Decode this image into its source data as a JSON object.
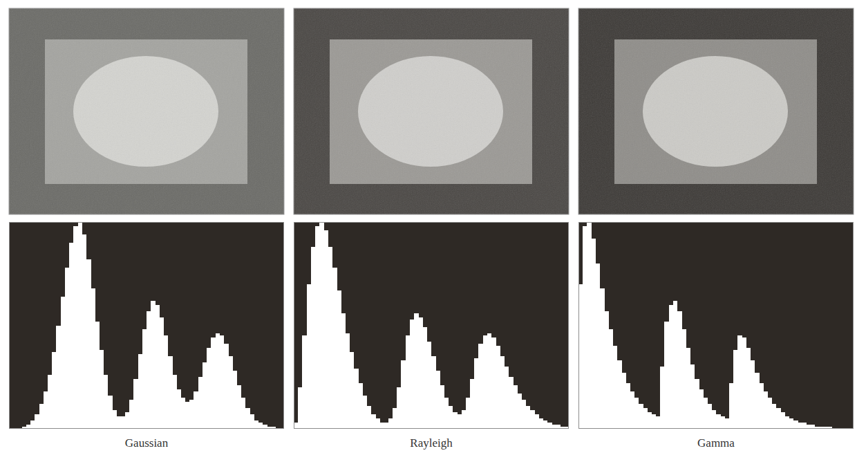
{
  "chart_data": [
    {
      "type": "histogram",
      "title": "Gaussian",
      "color": "#ffffff",
      "tick_labels": false,
      "xlim": [
        0,
        256
      ],
      "ylim": [
        0,
        100
      ],
      "bins": [
        0,
        4,
        8,
        12,
        16,
        20,
        24,
        28,
        32,
        36,
        40,
        44,
        48,
        52,
        56,
        60,
        64,
        68,
        72,
        76,
        80,
        84,
        88,
        92,
        96,
        100,
        104,
        108,
        112,
        116,
        120,
        124,
        128,
        132,
        136,
        140,
        144,
        148,
        152,
        156,
        160,
        164,
        168,
        172,
        176,
        180,
        184,
        188,
        192,
        196,
        200,
        204,
        208,
        212,
        216,
        220,
        224,
        228,
        232,
        236,
        240,
        244,
        248,
        252,
        256
      ],
      "values": [
        0,
        0,
        0,
        1,
        2,
        4,
        7,
        12,
        18,
        26,
        37,
        50,
        64,
        78,
        90,
        98,
        100,
        94,
        82,
        68,
        52,
        38,
        26,
        16,
        9,
        6,
        6,
        8,
        14,
        24,
        36,
        48,
        57,
        62,
        60,
        54,
        45,
        35,
        26,
        19,
        15,
        13,
        14,
        18,
        25,
        32,
        39,
        44,
        46,
        45,
        41,
        35,
        28,
        21,
        15,
        10,
        7,
        4,
        3,
        2,
        1,
        1,
        0,
        0
      ]
    },
    {
      "type": "histogram",
      "title": "Rayleigh",
      "color": "#ffffff",
      "tick_labels": false,
      "xlim": [
        0,
        256
      ],
      "ylim": [
        0,
        100
      ],
      "bins": [
        0,
        4,
        8,
        12,
        16,
        20,
        24,
        28,
        32,
        36,
        40,
        44,
        48,
        52,
        56,
        60,
        64,
        68,
        72,
        76,
        80,
        84,
        88,
        92,
        96,
        100,
        104,
        108,
        112,
        116,
        120,
        124,
        128,
        132,
        136,
        140,
        144,
        148,
        152,
        156,
        160,
        164,
        168,
        172,
        176,
        180,
        184,
        188,
        192,
        196,
        200,
        204,
        208,
        212,
        216,
        220,
        224,
        228,
        232,
        236,
        240,
        244,
        248,
        252,
        256
      ],
      "values": [
        3,
        20,
        45,
        70,
        88,
        98,
        100,
        96,
        88,
        78,
        67,
        56,
        46,
        37,
        29,
        22,
        16,
        11,
        7,
        5,
        3,
        3,
        5,
        10,
        20,
        33,
        45,
        53,
        56,
        54,
        49,
        42,
        35,
        28,
        21,
        15,
        11,
        8,
        7,
        9,
        15,
        24,
        34,
        41,
        45,
        46,
        44,
        40,
        35,
        30,
        25,
        21,
        17,
        14,
        11,
        9,
        7,
        5,
        4,
        3,
        2,
        2,
        1,
        1
      ]
    },
    {
      "type": "histogram",
      "title": "Gamma",
      "color": "#ffffff",
      "tick_labels": false,
      "xlim": [
        0,
        256
      ],
      "ylim": [
        0,
        100
      ],
      "bins": [
        0,
        4,
        8,
        12,
        16,
        20,
        24,
        28,
        32,
        36,
        40,
        44,
        48,
        52,
        56,
        60,
        64,
        68,
        72,
        76,
        80,
        84,
        88,
        92,
        96,
        100,
        104,
        108,
        112,
        116,
        120,
        124,
        128,
        132,
        136,
        140,
        144,
        148,
        152,
        156,
        160,
        164,
        168,
        172,
        176,
        180,
        184,
        188,
        192,
        196,
        200,
        204,
        208,
        212,
        216,
        220,
        224,
        228,
        232,
        236,
        240,
        244,
        248,
        252,
        256
      ],
      "values": [
        70,
        98,
        100,
        92,
        80,
        68,
        57,
        48,
        40,
        33,
        27,
        22,
        18,
        15,
        12,
        10,
        8,
        7,
        6,
        30,
        52,
        60,
        62,
        57,
        48,
        39,
        31,
        24,
        19,
        15,
        12,
        9,
        7,
        6,
        5,
        22,
        38,
        45,
        44,
        39,
        33,
        27,
        22,
        18,
        15,
        12,
        10,
        8,
        6,
        5,
        4,
        3,
        3,
        2,
        2,
        1,
        1,
        1,
        1,
        0,
        0,
        0,
        0,
        0
      ]
    }
  ]
}
